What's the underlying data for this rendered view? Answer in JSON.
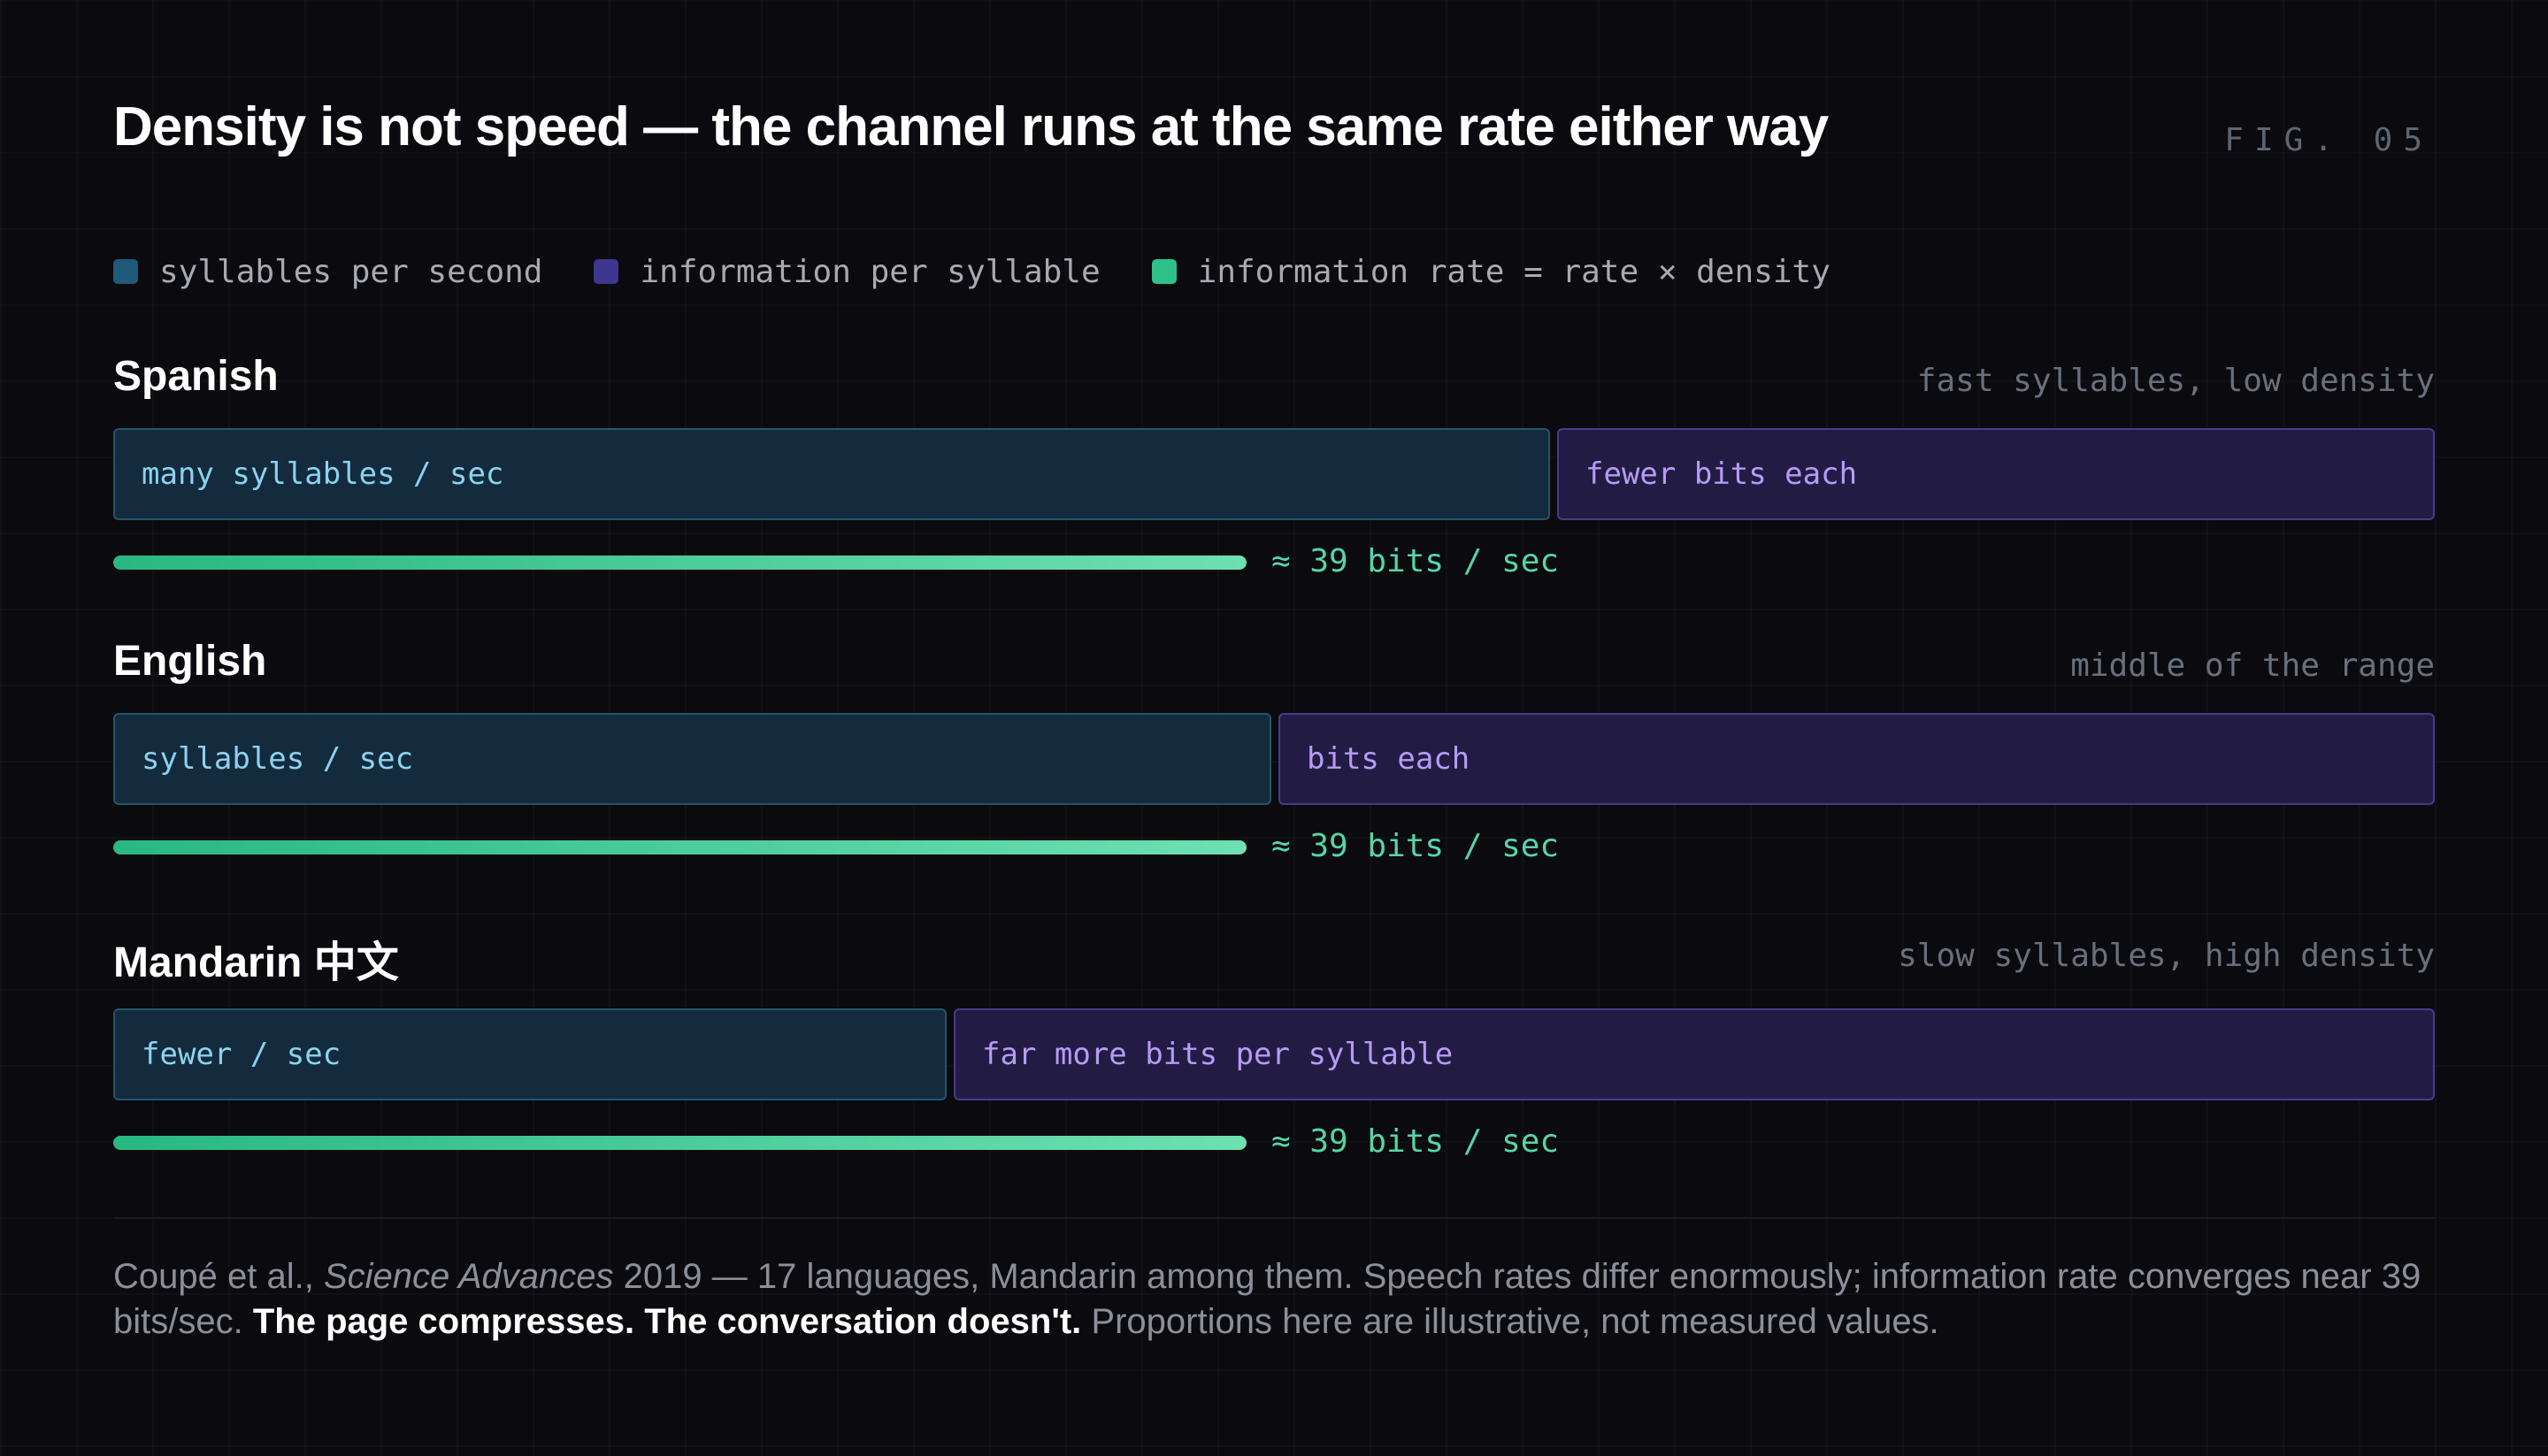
{
  "title": "Density is not speed — the channel runs at the same rate either way",
  "fig_label": "FIG. 05",
  "legend": [
    {
      "label": "syllables per second",
      "color": "#1f5a78"
    },
    {
      "label": "information per syllable",
      "color": "#3f3690"
    },
    {
      "label": "information rate = rate × density",
      "color": "#2ec08a"
    }
  ],
  "rows": [
    {
      "language": "Spanish",
      "note": "fast syllables, low density",
      "rate_label": "many syllables / sec",
      "density_label": "fewer bits each",
      "rate_fraction": 0.619,
      "info_label": "≈ 39 bits / sec"
    },
    {
      "language": "English",
      "note": "middle of the range",
      "rate_label": "syllables / sec",
      "density_label": "bits each",
      "rate_fraction": 0.499,
      "info_label": "≈ 39 bits / sec"
    },
    {
      "language": "Mandarin 中文",
      "note": "slow syllables, high density",
      "rate_label": "fewer / sec",
      "density_label": "far more bits per syllable",
      "rate_fraction": 0.359,
      "info_label": "≈ 39 bits / sec"
    }
  ],
  "info_rate_fraction": 0.488,
  "caption": {
    "part1": "Coupé et al., ",
    "journal": "Science Advances",
    "part2": " 2019 — 17 languages, Mandarin among them. Speech rates differ enormously; information rate converges near 39 bits/sec. ",
    "emphasis": "The page compresses. The conversation doesn't.",
    "part3": " Proportions here are illustrative, not measured values."
  }
}
